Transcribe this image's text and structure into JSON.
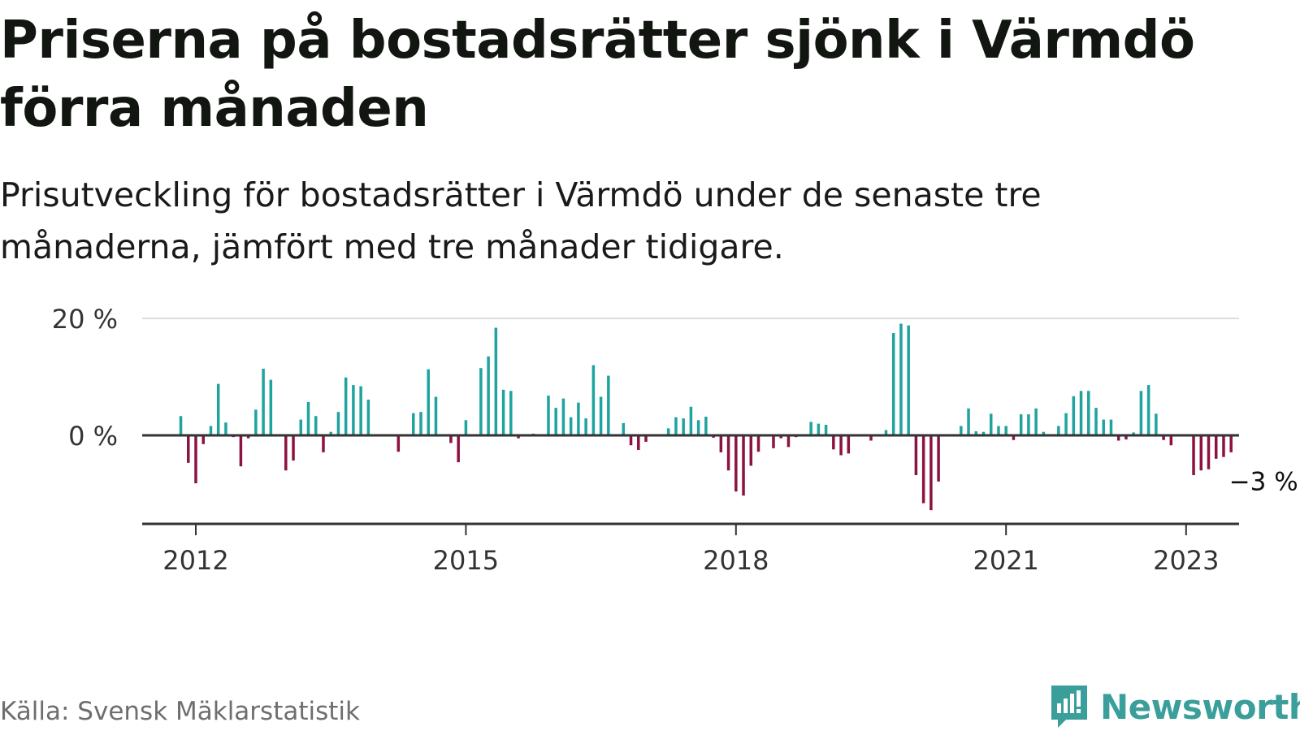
{
  "title": "Priserna på bostadsrätter sjönk i Värmdö förra månaden",
  "subtitle": "Prisutveckling för bostadsrätter i Värmdö under de senaste tre månaderna, jämfört med tre månader tidigare.",
  "source": "Källa: Svensk Mäklarstatistik",
  "brand": "Newsworthy",
  "colors": {
    "positive": "#1fa39e",
    "negative": "#8c1242",
    "axis": "#333333",
    "grid": "#dddddd",
    "brand": "#3a9e9a"
  },
  "chart_data": {
    "type": "bar",
    "ylim": [
      -15,
      20
    ],
    "grid": true,
    "y_ticks": [
      {
        "value": 20,
        "label": "20 %"
      },
      {
        "value": 0,
        "label": "0 %"
      }
    ],
    "x_ticks": [
      {
        "year": 2012,
        "label": "2012"
      },
      {
        "year": 2015,
        "label": "2015"
      },
      {
        "year": 2018,
        "label": "2018"
      },
      {
        "year": 2021,
        "label": "2021"
      },
      {
        "year": 2023,
        "label": "2023"
      }
    ],
    "annotation": {
      "text": "−3 %",
      "value": -3
    },
    "start": "2011-11",
    "values": [
      3.3,
      -4.7,
      -8.2,
      -1.5,
      1.6,
      8.8,
      2.2,
      -0.3,
      -5.3,
      -0.5,
      4.4,
      11.4,
      9.5,
      0,
      -6.0,
      -4.3,
      2.7,
      5.7,
      3.3,
      -2.9,
      0.6,
      4.0,
      9.9,
      8.6,
      8.4,
      6.1,
      0,
      0,
      0,
      -2.8,
      0,
      3.8,
      4.0,
      11.3,
      6.6,
      0,
      -1.3,
      -4.6,
      2.6,
      0,
      11.5,
      13.5,
      18.4,
      7.8,
      7.6,
      -0.5,
      0,
      0.3,
      0,
      6.8,
      4.7,
      6.3,
      3.1,
      5.6,
      2.9,
      12.0,
      6.6,
      10.2,
      0,
      2.1,
      -1.7,
      -2.5,
      -1.1,
      0,
      0,
      1.2,
      3.1,
      2.9,
      4.9,
      2.6,
      3.2,
      -0.4,
      -2.9,
      -6.0,
      -9.6,
      -10.3,
      -5.2,
      -2.8,
      0,
      -2.2,
      -0.5,
      -2.0,
      -0.3,
      0,
      2.3,
      2.0,
      1.8,
      -2.4,
      -3.4,
      -3.1,
      0,
      0,
      -0.9,
      0,
      0.9,
      17.5,
      19.1,
      18.8,
      -6.8,
      -11.6,
      -12.8,
      -7.9,
      0,
      0,
      1.6,
      4.6,
      0.7,
      0.6,
      3.7,
      1.6,
      1.6,
      -0.8,
      3.6,
      3.6,
      4.6,
      0.6,
      0,
      1.6,
      3.8,
      6.7,
      7.6,
      7.6,
      4.7,
      2.7,
      2.7,
      -0.9,
      -0.7,
      0.5,
      7.6,
      8.6,
      3.7,
      -0.8,
      -1.7,
      0,
      0,
      -6.8,
      -6.0,
      -5.8,
      -4.0,
      -3.7,
      -2.9
    ]
  }
}
